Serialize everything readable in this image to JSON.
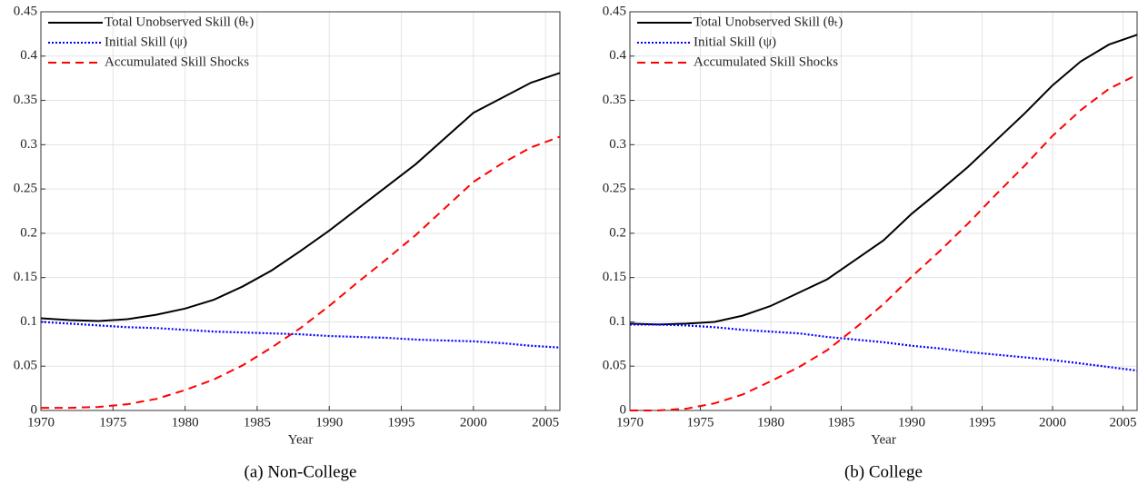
{
  "chart_data": [
    {
      "type": "line",
      "caption": "(a) Non-College",
      "xlabel": "Year",
      "x": [
        1970,
        1972,
        1974,
        1976,
        1978,
        1980,
        1982,
        1984,
        1986,
        1988,
        1990,
        1992,
        1994,
        1996,
        1998,
        2000,
        2002,
        2004,
        2006
      ],
      "series": [
        {
          "name": "Total Unobserved Skill (θₜ)",
          "color": "#000000",
          "dash": "solid",
          "values": [
            0.104,
            0.102,
            0.101,
            0.103,
            0.108,
            0.115,
            0.125,
            0.14,
            0.158,
            0.18,
            0.203,
            0.228,
            0.253,
            0.278,
            0.307,
            0.336,
            0.353,
            0.37,
            0.381
          ]
        },
        {
          "name": "Initial Skill (ψ)",
          "color": "#0000ff",
          "dash": "dotted",
          "values": [
            0.1,
            0.098,
            0.096,
            0.094,
            0.093,
            0.091,
            0.089,
            0.088,
            0.087,
            0.086,
            0.084,
            0.083,
            0.082,
            0.08,
            0.079,
            0.078,
            0.076,
            0.073,
            0.071
          ]
        },
        {
          "name": "Accumulated Skill Shocks",
          "color": "#ff0000",
          "dash": "dashed",
          "values": [
            0.003,
            0.003,
            0.004,
            0.007,
            0.013,
            0.023,
            0.035,
            0.051,
            0.071,
            0.093,
            0.118,
            0.145,
            0.171,
            0.198,
            0.228,
            0.258,
            0.279,
            0.297,
            0.309
          ]
        }
      ],
      "xlim": [
        1970,
        2006
      ],
      "xticks": [
        1970,
        1975,
        1980,
        1985,
        1990,
        1995,
        2000,
        2005
      ],
      "ylim": [
        0,
        0.45
      ],
      "yticks": [
        0,
        0.05,
        0.1,
        0.15,
        0.2,
        0.25,
        0.3,
        0.35,
        0.4,
        0.45
      ],
      "grid": true,
      "legend": "upper-left"
    },
    {
      "type": "line",
      "caption": "(b) College",
      "xlabel": "Year",
      "x": [
        1970,
        1972,
        1974,
        1976,
        1978,
        1980,
        1982,
        1984,
        1986,
        1988,
        1990,
        1992,
        1994,
        1996,
        1998,
        2000,
        2002,
        2004,
        2006
      ],
      "series": [
        {
          "name": "Total Unobserved Skill (θₜ)",
          "color": "#000000",
          "dash": "solid",
          "values": [
            0.098,
            0.097,
            0.098,
            0.1,
            0.107,
            0.118,
            0.133,
            0.148,
            0.17,
            0.192,
            0.222,
            0.248,
            0.275,
            0.305,
            0.335,
            0.367,
            0.394,
            0.413,
            0.424
          ]
        },
        {
          "name": "Initial Skill (ψ)",
          "color": "#0000ff",
          "dash": "dotted",
          "values": [
            0.097,
            0.097,
            0.096,
            0.094,
            0.091,
            0.089,
            0.087,
            0.083,
            0.08,
            0.077,
            0.073,
            0.07,
            0.066,
            0.063,
            0.06,
            0.057,
            0.053,
            0.049,
            0.045
          ]
        },
        {
          "name": "Accumulated Skill Shocks",
          "color": "#ff0000",
          "dash": "dashed",
          "values": [
            0.0,
            0.0,
            0.002,
            0.008,
            0.018,
            0.033,
            0.049,
            0.068,
            0.093,
            0.12,
            0.151,
            0.18,
            0.211,
            0.244,
            0.276,
            0.31,
            0.339,
            0.363,
            0.379
          ]
        }
      ],
      "xlim": [
        1970,
        2006
      ],
      "xticks": [
        1970,
        1975,
        1980,
        1985,
        1990,
        1995,
        2000,
        2005
      ],
      "ylim": [
        0,
        0.45
      ],
      "yticks": [
        0,
        0.05,
        0.1,
        0.15,
        0.2,
        0.25,
        0.3,
        0.35,
        0.4,
        0.45
      ],
      "grid": true,
      "legend": "upper-left"
    }
  ]
}
